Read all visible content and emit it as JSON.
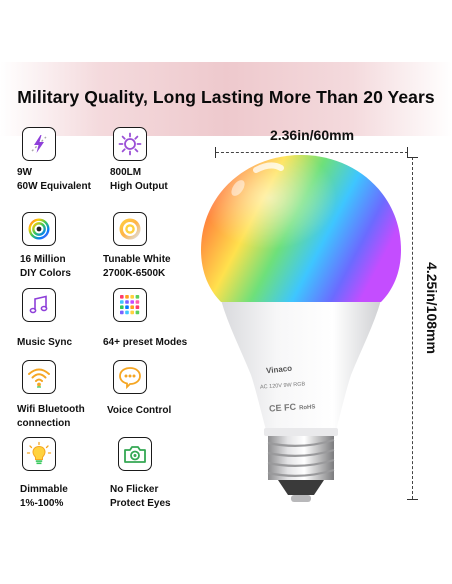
{
  "headline": "Military Quality, Long Lasting More Than 20 Years",
  "dimensions": {
    "width": "2.36in/60mm",
    "height": "4.25in/108mm"
  },
  "features": [
    {
      "icon": "lightning-icon",
      "lines": [
        "9W",
        "60W Equivalent"
      ]
    },
    {
      "icon": "sun-brightness-icon",
      "lines": [
        "800LM",
        "High Output"
      ]
    },
    {
      "icon": "color-wheel-icon",
      "lines": [
        "16 Million",
        "DIY Colors"
      ]
    },
    {
      "icon": "tunable-white-icon",
      "lines": [
        "Tunable White",
        "2700K-6500K"
      ]
    },
    {
      "icon": "music-note-icon",
      "lines": [
        "Music Sync"
      ]
    },
    {
      "icon": "preset-grid-icon",
      "lines": [
        "64+ preset Modes"
      ]
    },
    {
      "icon": "wifi-icon",
      "lines": [
        "Wifi Bluetooth",
        "connection"
      ]
    },
    {
      "icon": "voice-bubble-icon",
      "lines": [
        "Voice Control"
      ]
    },
    {
      "icon": "dimmable-bulb-icon",
      "lines": [
        "Dimmable",
        "1%-100%"
      ]
    },
    {
      "icon": "camera-icon",
      "lines": [
        "No Flicker",
        "Protect Eyes"
      ]
    }
  ],
  "bulb": {
    "brand": "Vinaco",
    "spec": "AC 120V  9W RGB",
    "cert": "CE FC",
    "rohs": "RoHS"
  }
}
